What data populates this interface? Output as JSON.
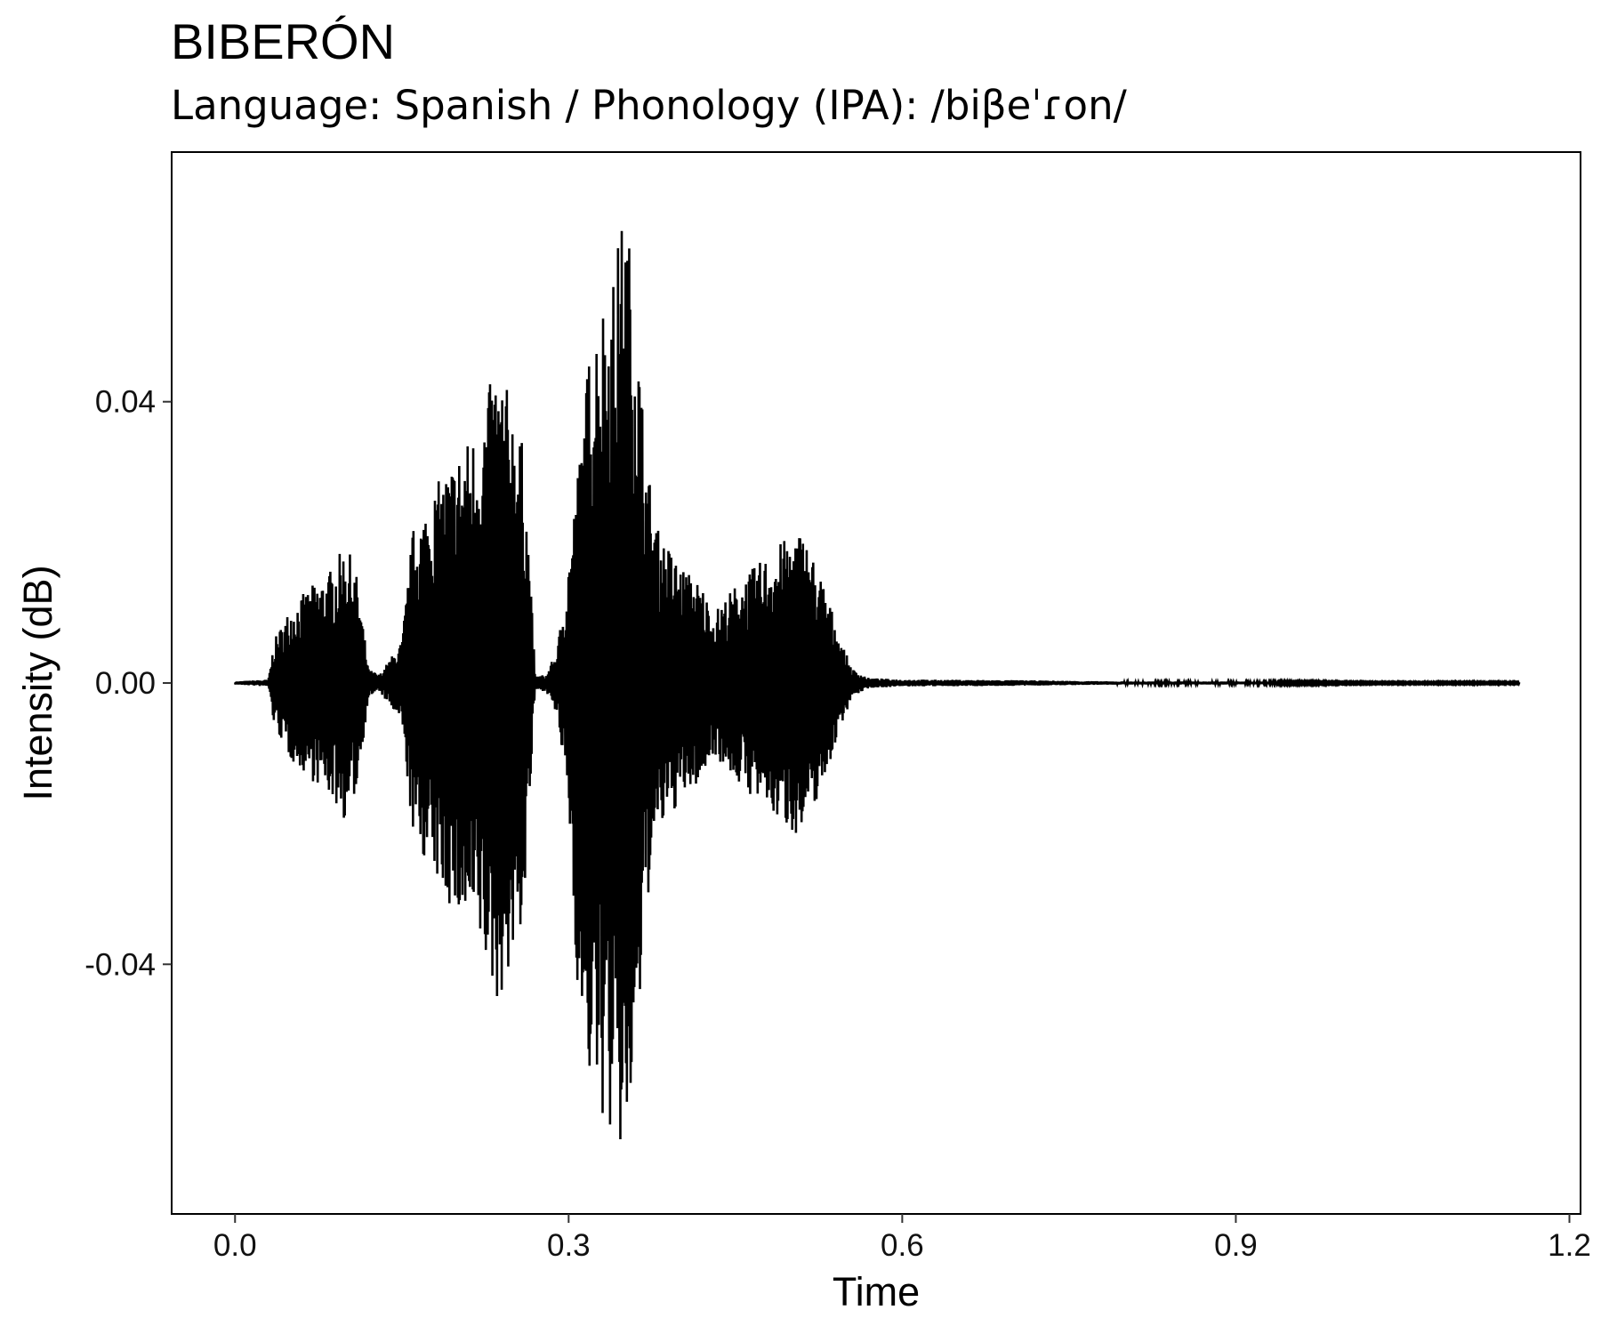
{
  "chart_data": {
    "type": "line",
    "title": "BIBERÓN",
    "subtitle": "Language: Spanish / Phonology (IPA): /biβeˈɾon/",
    "xlabel": "Time",
    "ylabel": "Intensity (dB)",
    "xlim": [
      -0.057,
      1.21
    ],
    "ylim": [
      -0.0755,
      0.0755
    ],
    "x_ticks": [
      0.0,
      0.3,
      0.6,
      0.9,
      1.2
    ],
    "x_tick_labels": [
      "0.0",
      "0.3",
      "0.6",
      "0.9",
      "1.2"
    ],
    "y_ticks": [
      -0.04,
      0.0,
      0.04
    ],
    "y_tick_labels": [
      "-0.04",
      "0.00",
      "0.04"
    ],
    "grid": false,
    "line_color": "#000000",
    "series": [
      {
        "x": [
          0.0,
          0.03,
          0.035,
          0.05,
          0.07,
          0.085,
          0.1,
          0.11,
          0.12,
          0.13,
          0.15,
          0.16,
          0.18,
          0.2,
          0.22,
          0.235,
          0.25,
          0.26,
          0.27,
          0.28,
          0.29,
          0.3,
          0.31,
          0.32,
          0.33,
          0.34,
          0.35,
          0.36,
          0.37,
          0.38,
          0.4,
          0.42,
          0.43,
          0.45,
          0.47,
          0.49,
          0.51,
          0.53,
          0.545,
          0.555,
          0.57,
          0.6,
          0.7,
          0.8,
          0.9,
          1.0,
          1.1,
          1.155
        ],
        "upper": [
          0.0002,
          0.0005,
          0.006,
          0.011,
          0.014,
          0.016,
          0.02,
          0.015,
          0.002,
          0.0012,
          0.006,
          0.022,
          0.028,
          0.033,
          0.037,
          0.046,
          0.04,
          0.033,
          0.001,
          0.0012,
          0.005,
          0.018,
          0.033,
          0.05,
          0.055,
          0.058,
          0.069,
          0.056,
          0.032,
          0.022,
          0.017,
          0.014,
          0.01,
          0.014,
          0.017,
          0.02,
          0.022,
          0.014,
          0.006,
          0.002,
          0.0007,
          0.0005,
          0.0004,
          0.0002,
          0.0002,
          0.0001,
          0.0001,
          0.0001
        ],
        "lower": [
          -0.0002,
          -0.0005,
          -0.006,
          -0.011,
          -0.014,
          -0.016,
          -0.02,
          -0.015,
          -0.002,
          -0.0012,
          -0.006,
          -0.022,
          -0.028,
          -0.034,
          -0.038,
          -0.046,
          -0.04,
          -0.033,
          -0.001,
          -0.0012,
          -0.005,
          -0.018,
          -0.05,
          -0.058,
          -0.062,
          -0.066,
          -0.069,
          -0.058,
          -0.032,
          -0.022,
          -0.017,
          -0.014,
          -0.01,
          -0.014,
          -0.017,
          -0.02,
          -0.022,
          -0.014,
          -0.006,
          -0.002,
          -0.0007,
          -0.0005,
          -0.0004,
          -0.0002,
          -0.0002,
          -0.0001,
          -0.0001,
          -0.0001
        ]
      }
    ]
  }
}
